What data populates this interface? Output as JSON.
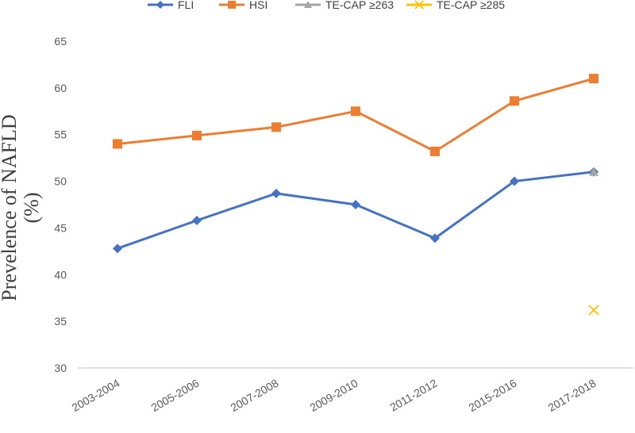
{
  "chart_data": {
    "type": "line",
    "title": "",
    "xlabel": "",
    "ylabel_lines": [
      "Prevelence of NAFLD",
      "(%)"
    ],
    "categories": [
      "2003-2004",
      "2005-2006",
      "2007-2008",
      "2009-2010",
      "2011-2012",
      "2015-2016",
      "2017-2018"
    ],
    "ylim": [
      30,
      65
    ],
    "yticks": [
      30,
      35,
      40,
      45,
      50,
      55,
      60,
      65
    ],
    "grid": false,
    "legend_position": "top",
    "series": [
      {
        "name": "FLI",
        "color": "#4472C4",
        "marker": "diamond",
        "values": [
          42.8,
          45.8,
          48.7,
          47.5,
          43.9,
          50.0,
          51.0
        ]
      },
      {
        "name": "HSI",
        "color": "#ED7D31",
        "marker": "square",
        "values": [
          54.0,
          54.9,
          55.8,
          57.5,
          53.2,
          58.6,
          61.0
        ]
      },
      {
        "name": "TE-CAP ≥263",
        "color": "#A5A5A5",
        "marker": "triangle",
        "values": [
          null,
          null,
          null,
          null,
          null,
          null,
          51.0
        ]
      },
      {
        "name": "TE-CAP ≥285",
        "color": "#FFC000",
        "marker": "x",
        "values": [
          null,
          null,
          null,
          null,
          null,
          null,
          36.2
        ]
      }
    ]
  }
}
